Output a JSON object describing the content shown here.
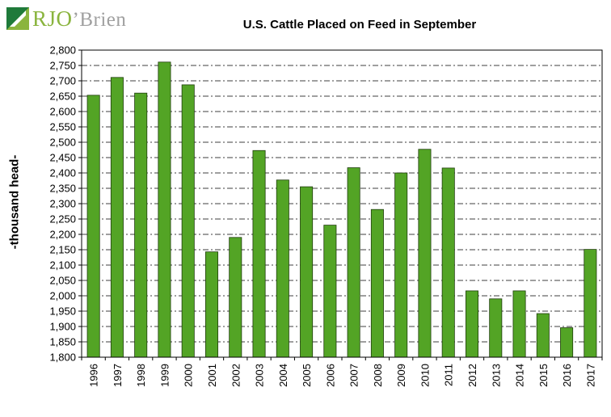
{
  "brand": {
    "logo_initials": "RJO",
    "logo_rest": "Brien",
    "logo_apostrophe": "’"
  },
  "chart_data": {
    "type": "bar",
    "title": "U.S. Cattle Placed on Feed in September",
    "ylabel": "-thousand head-",
    "xlabel": "",
    "categories": [
      "1996",
      "1997",
      "1998",
      "1999",
      "2000",
      "2001",
      "2002",
      "2003",
      "2004",
      "2005",
      "2006",
      "2007",
      "2008",
      "2009",
      "2010",
      "2011",
      "2012",
      "2013",
      "2014",
      "2015",
      "2016",
      "2017"
    ],
    "values": [
      2653,
      2711,
      2660,
      2761,
      2687,
      2143,
      2190,
      2473,
      2377,
      2355,
      2230,
      2417,
      2281,
      2400,
      2477,
      2416,
      2016,
      1990,
      2016,
      1942,
      1896,
      2151
    ],
    "ylim": [
      1800,
      2800
    ],
    "ytick_step": 50,
    "grid": true,
    "bar_color": "#53a425",
    "bar_edge_color": "#1f3d0c"
  }
}
